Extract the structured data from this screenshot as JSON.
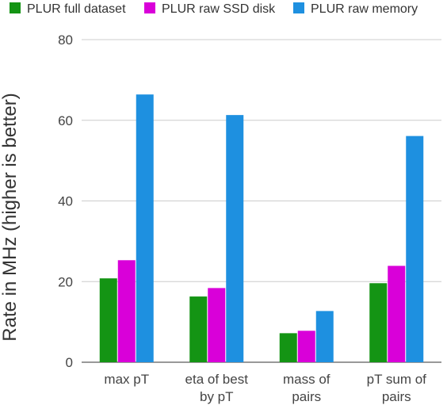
{
  "chart_data": {
    "type": "bar",
    "title": "",
    "xlabel": "",
    "ylabel": "Rate in MHz (higher is better)",
    "ylim": [
      0,
      80
    ],
    "yticks": [
      0,
      20,
      40,
      60,
      80
    ],
    "grid": true,
    "legend_position": "top",
    "categories": [
      [
        "max pT"
      ],
      [
        "eta of best",
        "by pT"
      ],
      [
        "mass of",
        "pairs"
      ],
      [
        "pT sum of",
        "pairs"
      ]
    ],
    "series": [
      {
        "name": "PLUR full dataset",
        "color": "#149414",
        "values": [
          20.8,
          16.3,
          7.2,
          19.6
        ]
      },
      {
        "name": "PLUR raw SSD disk",
        "color": "#d900d9",
        "values": [
          25.3,
          18.4,
          7.8,
          23.9
        ]
      },
      {
        "name": "PLUR raw memory",
        "color": "#1e90e0",
        "values": [
          66.4,
          61.3,
          12.7,
          56.1
        ]
      }
    ]
  }
}
